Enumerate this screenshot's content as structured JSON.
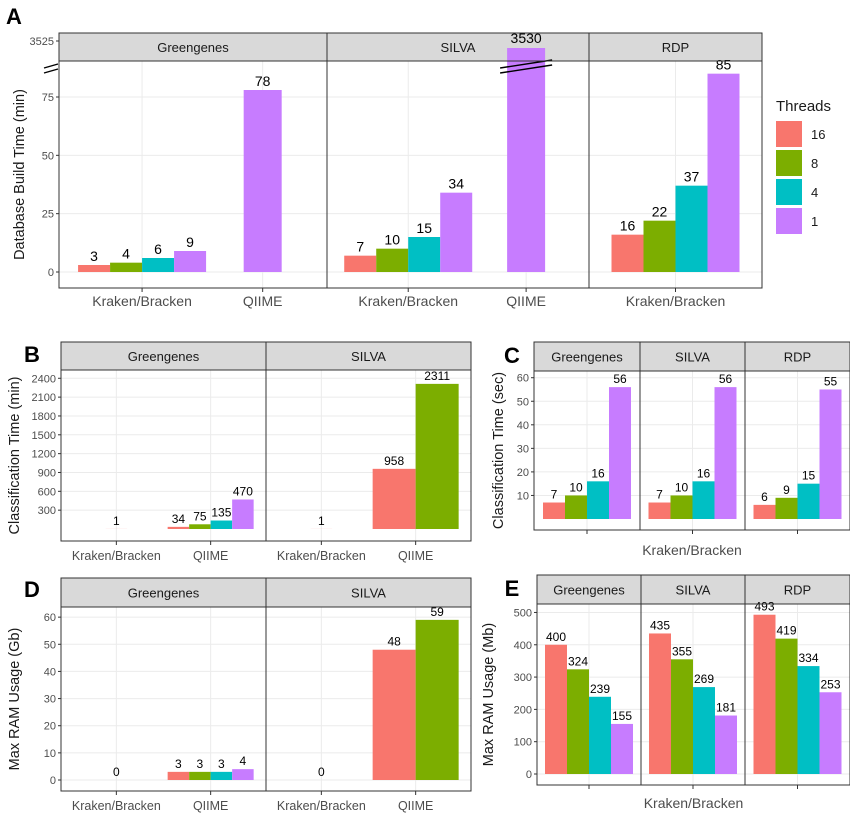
{
  "legend": {
    "title": "Threads",
    "items": [
      {
        "label": "16",
        "color": "#F8766D"
      },
      {
        "label": "8",
        "color": "#7CAE00"
      },
      {
        "label": "4",
        "color": "#00BFC4"
      },
      {
        "label": "1",
        "color": "#C77CFF"
      }
    ]
  },
  "chart_data": [
    {
      "panel": "A",
      "type": "bar",
      "ylabel": "Database Build Time (min)",
      "yticks": [
        0,
        25,
        50,
        75,
        3525
      ],
      "axis_break": "between 75 and 3525",
      "facets": [
        {
          "name": "Greengenes",
          "groups": [
            {
              "category": "Kraken/Bracken",
              "bars": [
                {
                  "threads": "16",
                  "value": 3
                },
                {
                  "threads": "8",
                  "value": 4
                },
                {
                  "threads": "4",
                  "value": 6
                },
                {
                  "threads": "1",
                  "value": 9
                }
              ]
            },
            {
              "category": "QIIME",
              "bars": [
                {
                  "threads": "1",
                  "value": 78
                }
              ]
            }
          ]
        },
        {
          "name": "SILVA",
          "groups": [
            {
              "category": "Kraken/Bracken",
              "bars": [
                {
                  "threads": "16",
                  "value": 7
                },
                {
                  "threads": "8",
                  "value": 10
                },
                {
                  "threads": "4",
                  "value": 15
                },
                {
                  "threads": "1",
                  "value": 34
                }
              ]
            },
            {
              "category": "QIIME",
              "bars": [
                {
                  "threads": "1",
                  "value": 3530
                }
              ]
            }
          ]
        },
        {
          "name": "RDP",
          "groups": [
            {
              "category": "Kraken/Bracken",
              "bars": [
                {
                  "threads": "16",
                  "value": 16
                },
                {
                  "threads": "8",
                  "value": 22
                },
                {
                  "threads": "4",
                  "value": 37
                },
                {
                  "threads": "1",
                  "value": 85
                }
              ]
            }
          ]
        }
      ]
    },
    {
      "panel": "B",
      "type": "bar",
      "ylabel": "Classification Time (min)",
      "ylim": [
        0,
        2500
      ],
      "yticks": [
        300,
        600,
        900,
        1200,
        1500,
        1800,
        2100,
        2400
      ],
      "facets": [
        {
          "name": "Greengenes",
          "groups": [
            {
              "category": "Kraken/Bracken",
              "bars": [
                {
                  "threads": "16",
                  "value": 1
                }
              ]
            },
            {
              "category": "QIIME",
              "bars": [
                {
                  "threads": "16",
                  "value": 34
                },
                {
                  "threads": "8",
                  "value": 75
                },
                {
                  "threads": "4",
                  "value": 135
                },
                {
                  "threads": "1",
                  "value": 470
                }
              ]
            }
          ]
        },
        {
          "name": "SILVA",
          "groups": [
            {
              "category": "Kraken/Bracken",
              "bars": [
                {
                  "threads": "16",
                  "value": 1
                }
              ]
            },
            {
              "category": "QIIME",
              "bars": [
                {
                  "threads": "16",
                  "value": 958
                },
                {
                  "threads": "8",
                  "value": 2311
                }
              ]
            }
          ]
        }
      ]
    },
    {
      "panel": "C",
      "type": "bar",
      "ylabel": "Classification Time (sec)",
      "xlabel": "Kraken/Bracken",
      "ylim": [
        0,
        62
      ],
      "yticks": [
        10,
        20,
        30,
        40,
        50,
        60
      ],
      "facets": [
        {
          "name": "Greengenes",
          "groups": [
            {
              "category": "",
              "bars": [
                {
                  "threads": "16",
                  "value": 7
                },
                {
                  "threads": "8",
                  "value": 10
                },
                {
                  "threads": "4",
                  "value": 16
                },
                {
                  "threads": "1",
                  "value": 56
                }
              ]
            }
          ]
        },
        {
          "name": "SILVA",
          "groups": [
            {
              "category": "",
              "bars": [
                {
                  "threads": "16",
                  "value": 7
                },
                {
                  "threads": "8",
                  "value": 10
                },
                {
                  "threads": "4",
                  "value": 16
                },
                {
                  "threads": "1",
                  "value": 56
                }
              ]
            }
          ]
        },
        {
          "name": "RDP",
          "groups": [
            {
              "category": "",
              "bars": [
                {
                  "threads": "16",
                  "value": 6
                },
                {
                  "threads": "8",
                  "value": 9
                },
                {
                  "threads": "4",
                  "value": 15
                },
                {
                  "threads": "1",
                  "value": 55
                }
              ]
            }
          ]
        }
      ]
    },
    {
      "panel": "D",
      "type": "bar",
      "ylabel": "Max RAM Usage (Gb)",
      "ylim": [
        0,
        63
      ],
      "yticks": [
        0,
        10,
        20,
        30,
        40,
        50,
        60
      ],
      "facets": [
        {
          "name": "Greengenes",
          "groups": [
            {
              "category": "Kraken/Bracken",
              "bars": [
                {
                  "threads": "16",
                  "value": 0
                }
              ]
            },
            {
              "category": "QIIME",
              "bars": [
                {
                  "threads": "16",
                  "value": 3
                },
                {
                  "threads": "8",
                  "value": 3
                },
                {
                  "threads": "4",
                  "value": 3
                },
                {
                  "threads": "1",
                  "value": 4
                }
              ]
            }
          ]
        },
        {
          "name": "SILVA",
          "groups": [
            {
              "category": "Kraken/Bracken",
              "bars": [
                {
                  "threads": "16",
                  "value": 0
                }
              ]
            },
            {
              "category": "QIIME",
              "bars": [
                {
                  "threads": "16",
                  "value": 48
                },
                {
                  "threads": "8",
                  "value": 59
                }
              ]
            }
          ]
        }
      ]
    },
    {
      "panel": "E",
      "type": "bar",
      "ylabel": "Max RAM Usage (Mb)",
      "xlabel": "Kraken/Bracken",
      "ylim": [
        0,
        520
      ],
      "yticks": [
        0,
        100,
        200,
        300,
        400,
        500
      ],
      "facets": [
        {
          "name": "Greengenes",
          "groups": [
            {
              "category": "",
              "bars": [
                {
                  "threads": "16",
                  "value": 400
                },
                {
                  "threads": "8",
                  "value": 324
                },
                {
                  "threads": "4",
                  "value": 239
                },
                {
                  "threads": "1",
                  "value": 155
                }
              ]
            }
          ]
        },
        {
          "name": "SILVA",
          "groups": [
            {
              "category": "",
              "bars": [
                {
                  "threads": "16",
                  "value": 435
                },
                {
                  "threads": "8",
                  "value": 355
                },
                {
                  "threads": "4",
                  "value": 269
                },
                {
                  "threads": "1",
                  "value": 181
                }
              ]
            }
          ]
        },
        {
          "name": "RDP",
          "groups": [
            {
              "category": "",
              "bars": [
                {
                  "threads": "16",
                  "value": 493
                },
                {
                  "threads": "8",
                  "value": 419
                },
                {
                  "threads": "4",
                  "value": 334
                },
                {
                  "threads": "1",
                  "value": 253
                }
              ]
            }
          ]
        }
      ]
    }
  ]
}
